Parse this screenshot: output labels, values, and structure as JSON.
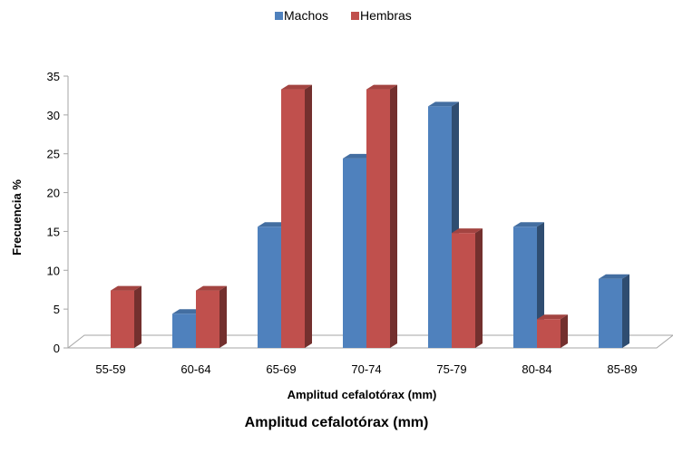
{
  "chart_data": {
    "type": "bar",
    "categories": [
      "55-59",
      "60-64",
      "65-69",
      "70-74",
      "75-79",
      "80-84",
      "85-89"
    ],
    "series": [
      {
        "name": "Machos",
        "values": [
          0,
          4.4,
          15.6,
          24.4,
          31.1,
          15.6,
          8.9
        ],
        "color": "#4F81BD"
      },
      {
        "name": "Hembras",
        "values": [
          7.4,
          7.4,
          33.3,
          33.3,
          14.8,
          3.7,
          0
        ],
        "color": "#C0504D"
      }
    ],
    "ylim": [
      0,
      35
    ],
    "yticks": [
      "0",
      "5",
      "10",
      "15",
      "20",
      "25",
      "30",
      "35"
    ],
    "xlabel": "Amplitud cefalotórax (mm)",
    "ylabel": "Frecuencia %",
    "legend_position": "top-center",
    "grid": false,
    "style": "3d-clustered-column"
  },
  "caption": "Amplitud cefalotórax (mm)"
}
